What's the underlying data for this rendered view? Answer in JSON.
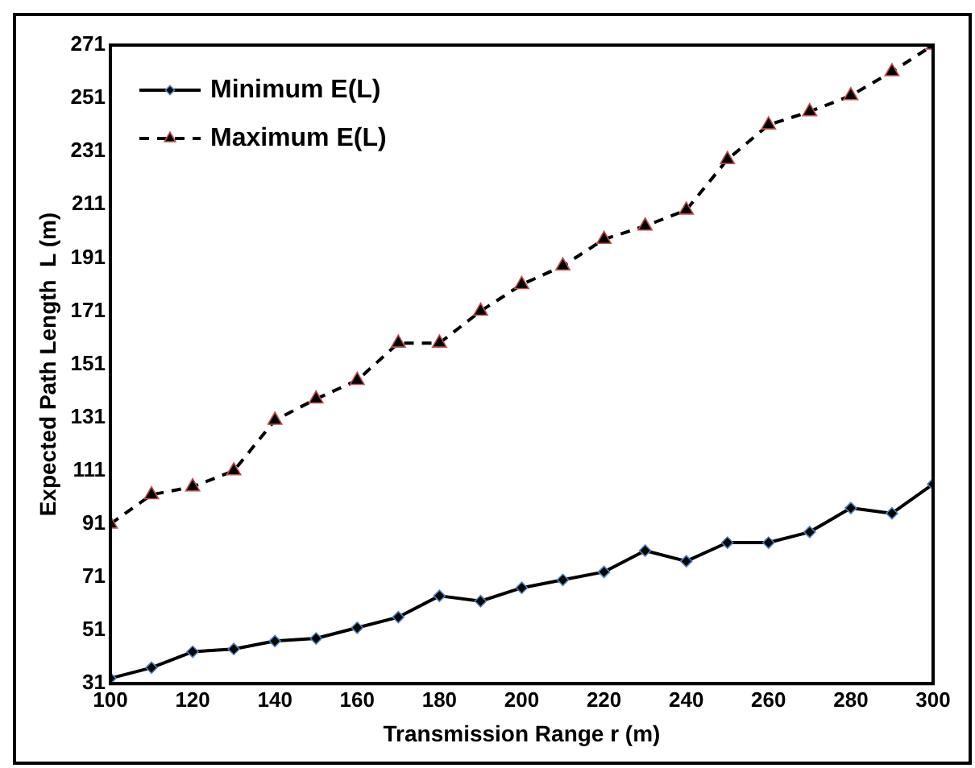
{
  "chart_data": {
    "type": "line",
    "xlabel": "Transmission Range r (m)",
    "ylabel": "Expected Path Length  L (m)",
    "x": [
      100,
      110,
      120,
      130,
      140,
      150,
      160,
      170,
      180,
      190,
      200,
      210,
      220,
      230,
      240,
      250,
      260,
      270,
      280,
      290,
      300
    ],
    "series": [
      {
        "name": "Minimum E(L)",
        "color": "#000000",
        "marker": "diamond",
        "line_style": "solid",
        "values": [
          33,
          37,
          43,
          44,
          47,
          48,
          52,
          56,
          64,
          62,
          67,
          70,
          73,
          81,
          77,
          84,
          84,
          88,
          97,
          95,
          106
        ]
      },
      {
        "name": "Maximum E(L)",
        "color": "#000000",
        "marker": "triangle",
        "line_style": "dashed",
        "values": [
          91,
          102,
          105,
          111,
          130,
          138,
          145,
          159,
          159,
          171,
          181,
          188,
          198,
          203,
          209,
          228,
          241,
          246,
          252,
          261,
          271
        ]
      }
    ],
    "xlim": [
      100,
      300
    ],
    "xticks": [
      100,
      120,
      140,
      160,
      180,
      200,
      220,
      240,
      260,
      280,
      300
    ],
    "ylim": [
      31,
      271
    ],
    "yticks": [
      31,
      51,
      71,
      91,
      111,
      131,
      151,
      171,
      191,
      211,
      231,
      251,
      271
    ],
    "grid": false,
    "legend": "top left"
  }
}
